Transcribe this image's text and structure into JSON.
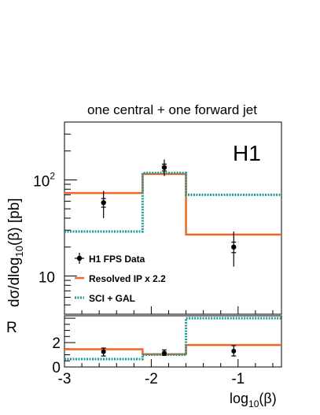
{
  "chart_data": [
    {
      "type": "line",
      "panel": "main",
      "title": "one central + one forward jet",
      "experiment_label": "H1",
      "ylabel_parts": [
        "dσ/dlog",
        "10",
        "(β) [pb]"
      ],
      "yscale": "log",
      "ylim": [
        4,
        400
      ],
      "xlim": [
        -3,
        -0.5
      ],
      "y_tick_labels": [
        {
          "base": "10",
          "exp": "",
          "value": 10
        },
        {
          "base": "10",
          "exp": "2",
          "value": 100
        }
      ],
      "bin_edges": [
        -3,
        -2.1,
        -1.6,
        -0.5
      ],
      "data": {
        "name": "H1 FPS Data",
        "points": [
          {
            "x": -2.55,
            "y": 58,
            "stat_lo": 52,
            "stat_hi": 64,
            "tot_lo": 40,
            "tot_hi": 77
          },
          {
            "x": -1.85,
            "y": 135,
            "stat_lo": 124,
            "stat_hi": 146,
            "tot_lo": 110,
            "tot_hi": 163
          },
          {
            "x": -1.05,
            "y": 20,
            "stat_lo": 17.5,
            "stat_hi": 22.5,
            "tot_lo": 12.5,
            "tot_hi": 29
          }
        ]
      },
      "series": [
        {
          "name": "Resolved IP x 2.2",
          "color": "#f26522",
          "style": "solid",
          "values": [
            73,
            115,
            27
          ]
        },
        {
          "name": "SCI + GAL",
          "color": "#1f9a9a",
          "style": "dotted",
          "values": [
            29,
            118,
            70
          ]
        }
      ],
      "legend_position": "bottom-left"
    },
    {
      "type": "line",
      "panel": "ratio",
      "ylabel": "R",
      "ylim": [
        0,
        4.2
      ],
      "y_ticks": [
        0,
        2
      ],
      "xlim": [
        -3,
        -0.5
      ],
      "x_ticks": [
        -3,
        -2,
        -1
      ],
      "xlabel_parts": [
        "log",
        "10",
        "(β)"
      ],
      "bin_edges": [
        -3,
        -2.1,
        -1.6,
        -0.5
      ],
      "data_points": [
        {
          "x": -2.55,
          "y": 1.25,
          "lo": 0.9,
          "hi": 1.55
        },
        {
          "x": -1.85,
          "y": 1.15,
          "lo": 0.95,
          "hi": 1.4
        },
        {
          "x": -1.05,
          "y": 1.3,
          "lo": 0.9,
          "hi": 1.75
        }
      ],
      "series": [
        {
          "name": "Resolved IP x 2.2",
          "color": "#f26522",
          "style": "solid",
          "values": [
            1.45,
            1.05,
            1.8
          ]
        },
        {
          "name": "SCI + GAL",
          "color": "#1f9a9a",
          "style": "dotted",
          "values": [
            0.65,
            1.0,
            4.0
          ]
        }
      ]
    }
  ]
}
